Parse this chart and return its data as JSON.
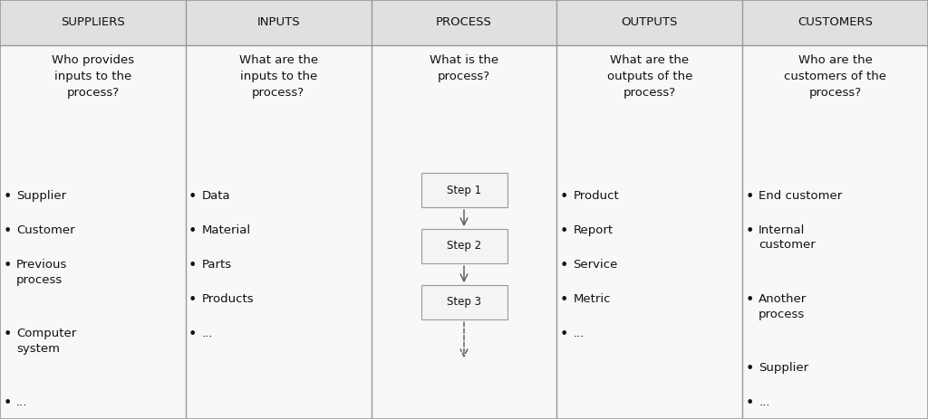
{
  "columns": [
    "SUPPLIERS",
    "INPUTS",
    "PROCESS",
    "OUTPUTS",
    "CUSTOMERS"
  ],
  "questions": [
    "Who provides\ninputs to the\nprocess?",
    "What are the\ninputs to the\nprocess?",
    "What is the\nprocess?",
    "What are the\noutputs of the\nprocess?",
    "Who are the\ncustomers of the\nprocess?"
  ],
  "bullet_items": [
    [
      "Supplier",
      "Customer",
      "Previous\nprocess",
      "Computer\nsystem",
      "..."
    ],
    [
      "Data",
      "Material",
      "Parts",
      "Products",
      "..."
    ],
    [],
    [
      "Product",
      "Report",
      "Service",
      "Metric",
      "..."
    ],
    [
      "End customer",
      "Internal\ncustomer",
      "Another\nprocess",
      "Supplier",
      "..."
    ]
  ],
  "process_steps": [
    "Step 1",
    "Step 2",
    "Step 3"
  ],
  "bg_color": "#f0f0f0",
  "header_bg": "#e0e0e0",
  "body_bg": "#f8f8f8",
  "border_color": "#999999",
  "text_color": "#111111",
  "step_box_color": "#f4f4f4",
  "step_box_border": "#999999",
  "arrow_color": "#555555",
  "header_fontsize": 9.5,
  "question_fontsize": 9.5,
  "bullet_fontsize": 9.5,
  "step_fontsize": 8.5
}
